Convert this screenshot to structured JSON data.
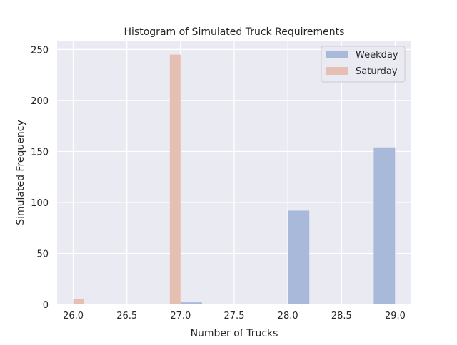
{
  "chart_data": {
    "type": "bar",
    "title": "Histogram of Simulated Truck Requirements",
    "xlabel": "Number of Trucks",
    "ylabel": "Simulated Frequency",
    "xlim": [
      25.85,
      29.15
    ],
    "ylim": [
      0,
      258
    ],
    "xticks": [
      "26.0",
      "26.5",
      "27.0",
      "27.5",
      "28.0",
      "28.5",
      "29.0"
    ],
    "yticks": [
      "0",
      "50",
      "100",
      "150",
      "200",
      "250"
    ],
    "grid": true,
    "legend_position": "top-right",
    "series": [
      {
        "name": "Weekday",
        "color": "#a9b9d9",
        "bins": [
          {
            "start": 27.0,
            "end": 27.2,
            "count": 2
          },
          {
            "start": 28.0,
            "end": 28.2,
            "count": 92
          },
          {
            "start": 28.8,
            "end": 29.0,
            "count": 154
          }
        ]
      },
      {
        "name": "Saturday",
        "color": "#e6bfb3",
        "bins": [
          {
            "start": 26.0,
            "end": 26.1,
            "count": 5
          },
          {
            "start": 26.9,
            "end": 27.0,
            "count": 245
          }
        ]
      }
    ]
  }
}
